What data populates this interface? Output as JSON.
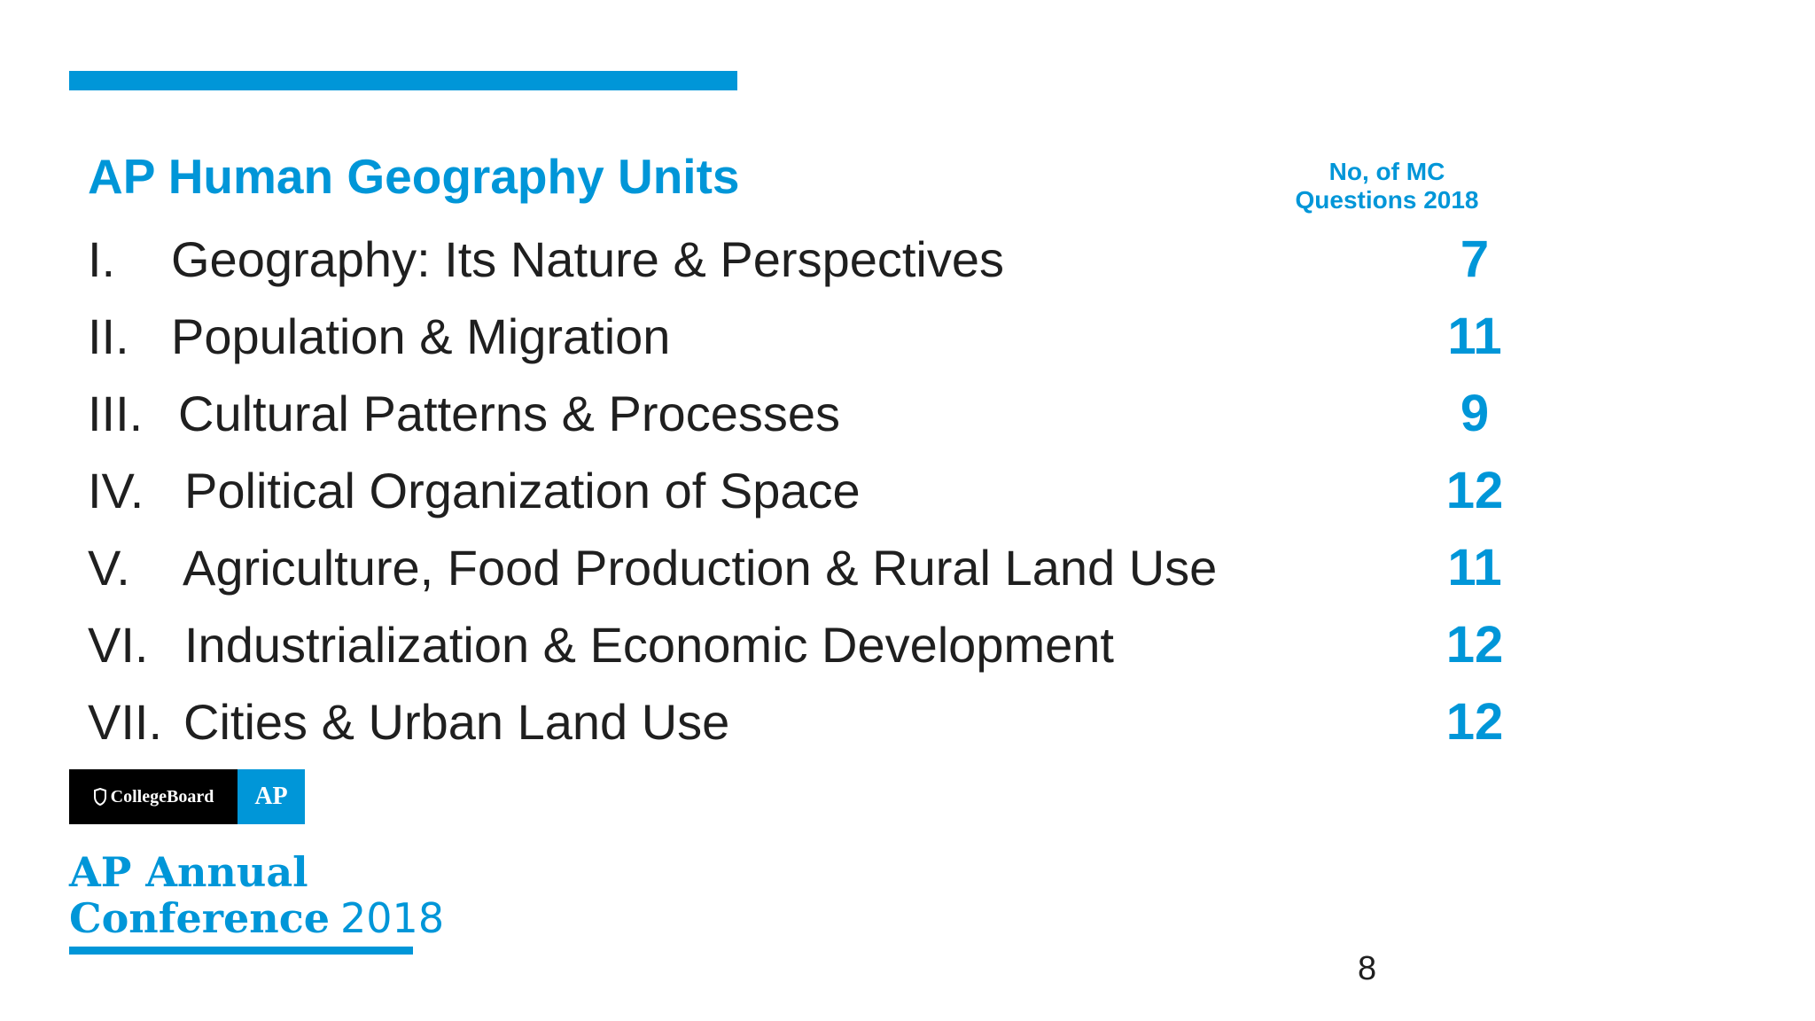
{
  "slide": {
    "title": "AP Human Geography Units",
    "column_header": [
      "No, of MC",
      "Questions 2018"
    ],
    "units": [
      {
        "numeral": "I.",
        "name": "Geography: Its Nature & Perspectives",
        "count": "7"
      },
      {
        "numeral": "II.",
        "name": "Population & Migration",
        "count": "11"
      },
      {
        "numeral": "III.",
        "name": "Cultural Patterns & Processes",
        "count": "9"
      },
      {
        "numeral": "IV.",
        "name": "Political Organization of Space",
        "count": "12"
      },
      {
        "numeral": "V.",
        "name": "Agriculture, Food Production & Rural Land Use",
        "count": "11"
      },
      {
        "numeral": "VI.",
        "name": "Industrialization & Economic Development",
        "count": "12"
      },
      {
        "numeral": "VII.",
        "name": "Cities & Urban Land Use",
        "count": "12"
      }
    ],
    "page_number": "8"
  },
  "branding": {
    "collegeboard_text": "CollegeBoard",
    "ap_text": "AP",
    "conference_line1": "AP Annual",
    "conference_word": "Conference",
    "conference_year": "2018",
    "accent_color": "#0096d8"
  }
}
